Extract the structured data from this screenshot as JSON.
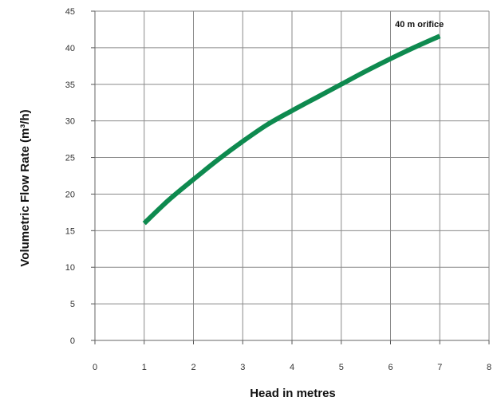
{
  "chart_data": {
    "type": "line",
    "title": "",
    "xlabel": "Head in metres",
    "ylabel": "Volumetric Flow Rate (m³/h)",
    "xlim": [
      0,
      8
    ],
    "ylim": [
      0,
      45
    ],
    "xticks": [
      "0",
      "1",
      "2",
      "3",
      "4",
      "5",
      "6",
      "7",
      "8"
    ],
    "yticks": [
      "0",
      "5",
      "10",
      "15",
      "20",
      "25",
      "30",
      "35",
      "40",
      "45"
    ],
    "grid": true,
    "legend": "none",
    "series": [
      {
        "name": "40 m orifice",
        "color": "#0e8a4f",
        "x": [
          1,
          1.5,
          2,
          2.5,
          3,
          3.5,
          4,
          4.5,
          5,
          5.5,
          6,
          6.5,
          7
        ],
        "y": [
          16,
          19.2,
          22,
          24.7,
          27.2,
          29.5,
          31.4,
          33.2,
          35,
          36.8,
          38.5,
          40.1,
          41.6
        ]
      }
    ]
  }
}
